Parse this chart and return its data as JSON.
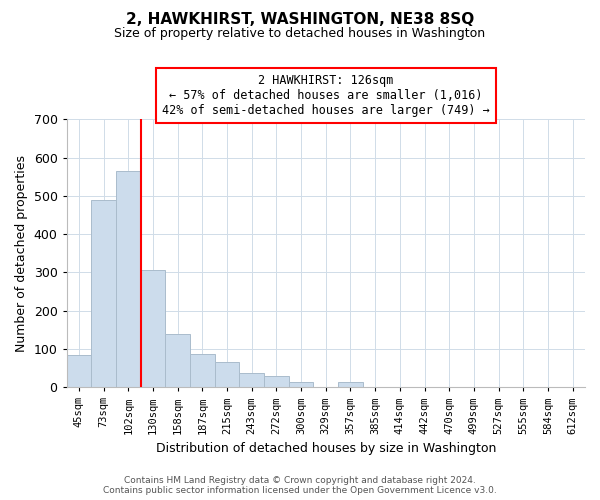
{
  "title": "2, HAWKHIRST, WASHINGTON, NE38 8SQ",
  "subtitle": "Size of property relative to detached houses in Washington",
  "xlabel": "Distribution of detached houses by size in Washington",
  "ylabel": "Number of detached properties",
  "bar_color": "#ccdcec",
  "bar_edge_color": "#aabccc",
  "categories": [
    "45sqm",
    "73sqm",
    "102sqm",
    "130sqm",
    "158sqm",
    "187sqm",
    "215sqm",
    "243sqm",
    "272sqm",
    "300sqm",
    "329sqm",
    "357sqm",
    "385sqm",
    "414sqm",
    "442sqm",
    "470sqm",
    "499sqm",
    "527sqm",
    "555sqm",
    "584sqm",
    "612sqm"
  ],
  "values": [
    84,
    490,
    565,
    305,
    140,
    86,
    65,
    36,
    30,
    13,
    0,
    13,
    0,
    0,
    0,
    0,
    0,
    0,
    0,
    0,
    0
  ],
  "ylim": [
    0,
    700
  ],
  "yticks": [
    0,
    100,
    200,
    300,
    400,
    500,
    600,
    700
  ],
  "red_line_x": 2.5,
  "annotation_title": "2 HAWKHIRST: 126sqm",
  "annotation_line1": "← 57% of detached houses are smaller (1,016)",
  "annotation_line2": "42% of semi-detached houses are larger (749) →",
  "footer_line1": "Contains HM Land Registry data © Crown copyright and database right 2024.",
  "footer_line2": "Contains public sector information licensed under the Open Government Licence v3.0.",
  "background_color": "#ffffff",
  "grid_color": "#d0dce8"
}
